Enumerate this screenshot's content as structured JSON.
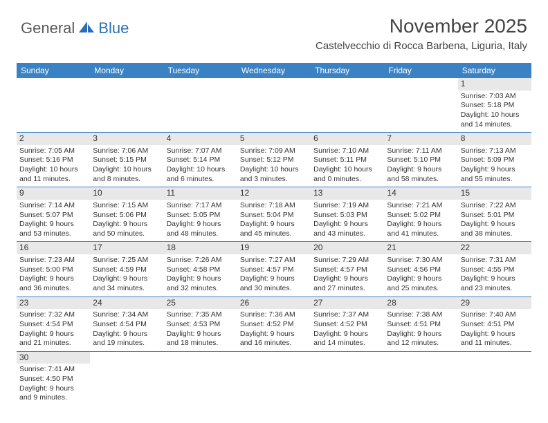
{
  "logo": {
    "text1": "General",
    "text2": "Blue"
  },
  "title": "November 2025",
  "location": "Castelvecchio di Rocca Barbena, Liguria, Italy",
  "day_headers": [
    "Sunday",
    "Monday",
    "Tuesday",
    "Wednesday",
    "Thursday",
    "Friday",
    "Saturday"
  ],
  "colors": {
    "header_bg": "#3b82c4",
    "logo_gray": "#5a5a5a",
    "logo_blue": "#2a6fb5",
    "daynum_bg": "#e8e8e8",
    "text": "#333333"
  },
  "weeks": [
    [
      null,
      null,
      null,
      null,
      null,
      null,
      {
        "n": "1",
        "sr": "Sunrise: 7:03 AM",
        "ss": "Sunset: 5:18 PM",
        "d1": "Daylight: 10 hours",
        "d2": "and 14 minutes."
      }
    ],
    [
      {
        "n": "2",
        "sr": "Sunrise: 7:05 AM",
        "ss": "Sunset: 5:16 PM",
        "d1": "Daylight: 10 hours",
        "d2": "and 11 minutes."
      },
      {
        "n": "3",
        "sr": "Sunrise: 7:06 AM",
        "ss": "Sunset: 5:15 PM",
        "d1": "Daylight: 10 hours",
        "d2": "and 8 minutes."
      },
      {
        "n": "4",
        "sr": "Sunrise: 7:07 AM",
        "ss": "Sunset: 5:14 PM",
        "d1": "Daylight: 10 hours",
        "d2": "and 6 minutes."
      },
      {
        "n": "5",
        "sr": "Sunrise: 7:09 AM",
        "ss": "Sunset: 5:12 PM",
        "d1": "Daylight: 10 hours",
        "d2": "and 3 minutes."
      },
      {
        "n": "6",
        "sr": "Sunrise: 7:10 AM",
        "ss": "Sunset: 5:11 PM",
        "d1": "Daylight: 10 hours",
        "d2": "and 0 minutes."
      },
      {
        "n": "7",
        "sr": "Sunrise: 7:11 AM",
        "ss": "Sunset: 5:10 PM",
        "d1": "Daylight: 9 hours",
        "d2": "and 58 minutes."
      },
      {
        "n": "8",
        "sr": "Sunrise: 7:13 AM",
        "ss": "Sunset: 5:09 PM",
        "d1": "Daylight: 9 hours",
        "d2": "and 55 minutes."
      }
    ],
    [
      {
        "n": "9",
        "sr": "Sunrise: 7:14 AM",
        "ss": "Sunset: 5:07 PM",
        "d1": "Daylight: 9 hours",
        "d2": "and 53 minutes."
      },
      {
        "n": "10",
        "sr": "Sunrise: 7:15 AM",
        "ss": "Sunset: 5:06 PM",
        "d1": "Daylight: 9 hours",
        "d2": "and 50 minutes."
      },
      {
        "n": "11",
        "sr": "Sunrise: 7:17 AM",
        "ss": "Sunset: 5:05 PM",
        "d1": "Daylight: 9 hours",
        "d2": "and 48 minutes."
      },
      {
        "n": "12",
        "sr": "Sunrise: 7:18 AM",
        "ss": "Sunset: 5:04 PM",
        "d1": "Daylight: 9 hours",
        "d2": "and 45 minutes."
      },
      {
        "n": "13",
        "sr": "Sunrise: 7:19 AM",
        "ss": "Sunset: 5:03 PM",
        "d1": "Daylight: 9 hours",
        "d2": "and 43 minutes."
      },
      {
        "n": "14",
        "sr": "Sunrise: 7:21 AM",
        "ss": "Sunset: 5:02 PM",
        "d1": "Daylight: 9 hours",
        "d2": "and 41 minutes."
      },
      {
        "n": "15",
        "sr": "Sunrise: 7:22 AM",
        "ss": "Sunset: 5:01 PM",
        "d1": "Daylight: 9 hours",
        "d2": "and 38 minutes."
      }
    ],
    [
      {
        "n": "16",
        "sr": "Sunrise: 7:23 AM",
        "ss": "Sunset: 5:00 PM",
        "d1": "Daylight: 9 hours",
        "d2": "and 36 minutes."
      },
      {
        "n": "17",
        "sr": "Sunrise: 7:25 AM",
        "ss": "Sunset: 4:59 PM",
        "d1": "Daylight: 9 hours",
        "d2": "and 34 minutes."
      },
      {
        "n": "18",
        "sr": "Sunrise: 7:26 AM",
        "ss": "Sunset: 4:58 PM",
        "d1": "Daylight: 9 hours",
        "d2": "and 32 minutes."
      },
      {
        "n": "19",
        "sr": "Sunrise: 7:27 AM",
        "ss": "Sunset: 4:57 PM",
        "d1": "Daylight: 9 hours",
        "d2": "and 30 minutes."
      },
      {
        "n": "20",
        "sr": "Sunrise: 7:29 AM",
        "ss": "Sunset: 4:57 PM",
        "d1": "Daylight: 9 hours",
        "d2": "and 27 minutes."
      },
      {
        "n": "21",
        "sr": "Sunrise: 7:30 AM",
        "ss": "Sunset: 4:56 PM",
        "d1": "Daylight: 9 hours",
        "d2": "and 25 minutes."
      },
      {
        "n": "22",
        "sr": "Sunrise: 7:31 AM",
        "ss": "Sunset: 4:55 PM",
        "d1": "Daylight: 9 hours",
        "d2": "and 23 minutes."
      }
    ],
    [
      {
        "n": "23",
        "sr": "Sunrise: 7:32 AM",
        "ss": "Sunset: 4:54 PM",
        "d1": "Daylight: 9 hours",
        "d2": "and 21 minutes."
      },
      {
        "n": "24",
        "sr": "Sunrise: 7:34 AM",
        "ss": "Sunset: 4:54 PM",
        "d1": "Daylight: 9 hours",
        "d2": "and 19 minutes."
      },
      {
        "n": "25",
        "sr": "Sunrise: 7:35 AM",
        "ss": "Sunset: 4:53 PM",
        "d1": "Daylight: 9 hours",
        "d2": "and 18 minutes."
      },
      {
        "n": "26",
        "sr": "Sunrise: 7:36 AM",
        "ss": "Sunset: 4:52 PM",
        "d1": "Daylight: 9 hours",
        "d2": "and 16 minutes."
      },
      {
        "n": "27",
        "sr": "Sunrise: 7:37 AM",
        "ss": "Sunset: 4:52 PM",
        "d1": "Daylight: 9 hours",
        "d2": "and 14 minutes."
      },
      {
        "n": "28",
        "sr": "Sunrise: 7:38 AM",
        "ss": "Sunset: 4:51 PM",
        "d1": "Daylight: 9 hours",
        "d2": "and 12 minutes."
      },
      {
        "n": "29",
        "sr": "Sunrise: 7:40 AM",
        "ss": "Sunset: 4:51 PM",
        "d1": "Daylight: 9 hours",
        "d2": "and 11 minutes."
      }
    ],
    [
      {
        "n": "30",
        "sr": "Sunrise: 7:41 AM",
        "ss": "Sunset: 4:50 PM",
        "d1": "Daylight: 9 hours",
        "d2": "and 9 minutes."
      },
      null,
      null,
      null,
      null,
      null,
      null
    ]
  ]
}
